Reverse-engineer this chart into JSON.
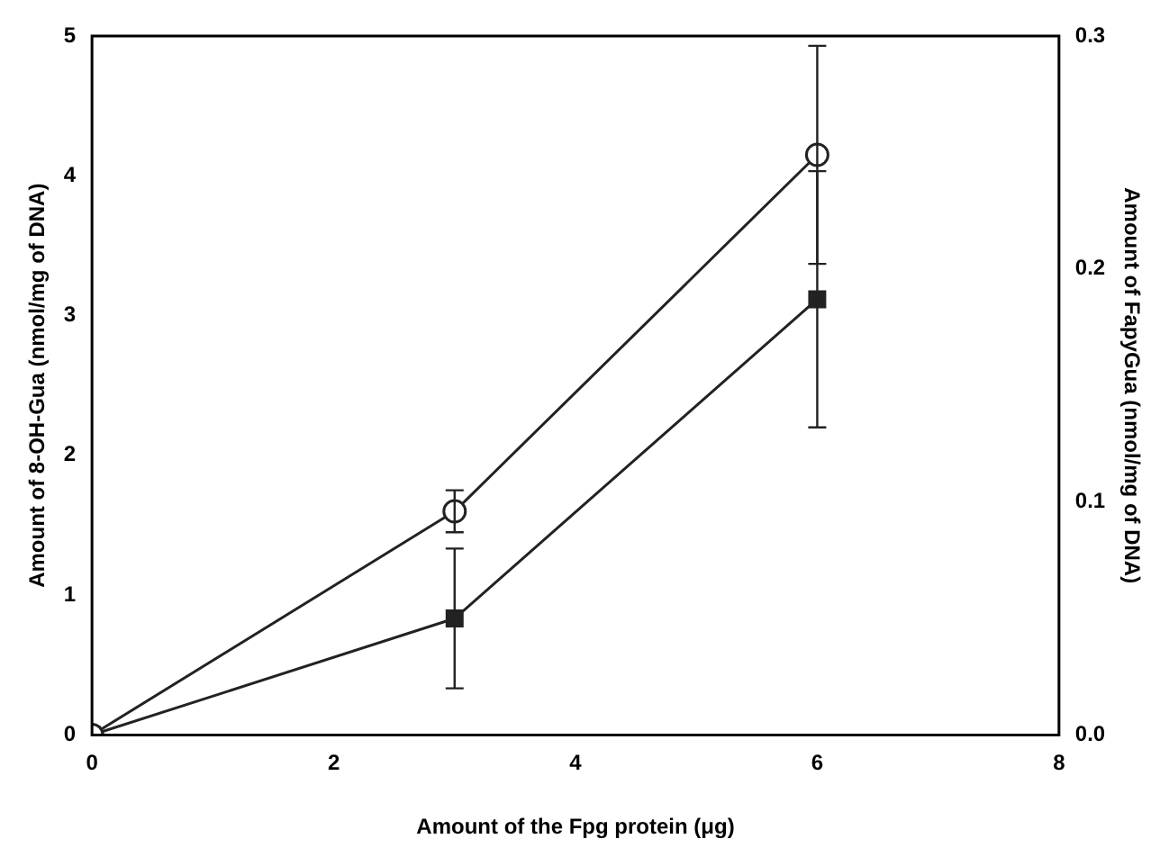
{
  "chart_data": {
    "type": "line",
    "xlabel": "Amount of the Fpg protein (μg)",
    "ylabel": "Amount of 8-OH-Gua (nmol/mg of DNA)",
    "y2label": "Amount of FapyGua (nmol/mg of DNA)",
    "x": [
      0,
      3,
      6
    ],
    "series": [
      {
        "color": "#222222",
        "marker": "circle",
        "values": [
          0,
          1.6,
          4.15
        ],
        "errors": [
          null,
          0.15,
          0.78
        ]
      },
      {
        "color": "#222222",
        "marker": "square",
        "axis": "y2",
        "values": [
          0,
          0.05,
          0.187
        ],
        "errors": [
          null,
          0.03,
          0.055
        ]
      }
    ],
    "xlim": [
      0,
      8
    ],
    "xticks": [
      0,
      2,
      4,
      6,
      8
    ],
    "ylim": [
      0,
      5
    ],
    "yticks": [
      0,
      1,
      2,
      3,
      4,
      5
    ],
    "y2lim": [
      0,
      0.3
    ],
    "y2ticks": [
      {
        "value": 0,
        "label": "0.0"
      },
      {
        "value": 0.1,
        "label": "0.1"
      },
      {
        "value": 0.2,
        "label": "0.2"
      },
      {
        "value": 0.3,
        "label": "0.3"
      }
    ],
    "grid": false,
    "legend": false,
    "line_style": "solid"
  }
}
